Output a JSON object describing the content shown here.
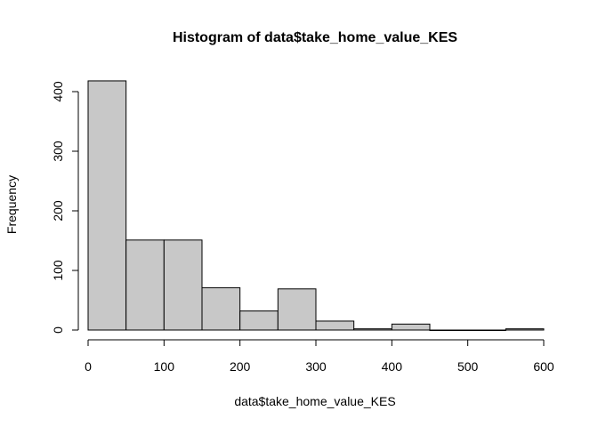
{
  "chart_data": {
    "type": "bar",
    "title": "Histogram of data$take_home_value_KES",
    "xlabel": "data$take_home_value_KES",
    "ylabel": "Frequency",
    "bins": [
      {
        "start": 0,
        "end": 50,
        "count": 418
      },
      {
        "start": 50,
        "end": 100,
        "count": 151
      },
      {
        "start": 100,
        "end": 150,
        "count": 151
      },
      {
        "start": 150,
        "end": 200,
        "count": 71
      },
      {
        "start": 200,
        "end": 250,
        "count": 32
      },
      {
        "start": 250,
        "end": 300,
        "count": 69
      },
      {
        "start": 300,
        "end": 350,
        "count": 15
      },
      {
        "start": 350,
        "end": 400,
        "count": 2
      },
      {
        "start": 400,
        "end": 450,
        "count": 10
      },
      {
        "start": 450,
        "end": 500,
        "count": 0
      },
      {
        "start": 500,
        "end": 550,
        "count": 0
      },
      {
        "start": 550,
        "end": 600,
        "count": 2
      }
    ],
    "xlim": [
      0,
      600
    ],
    "ylim": [
      0,
      420
    ],
    "xticks": [
      0,
      100,
      200,
      300,
      400,
      500,
      600
    ],
    "yticks": [
      0,
      100,
      200,
      300,
      400
    ],
    "bar_color": "#c8c8c8",
    "grid": false,
    "legend": "none"
  }
}
